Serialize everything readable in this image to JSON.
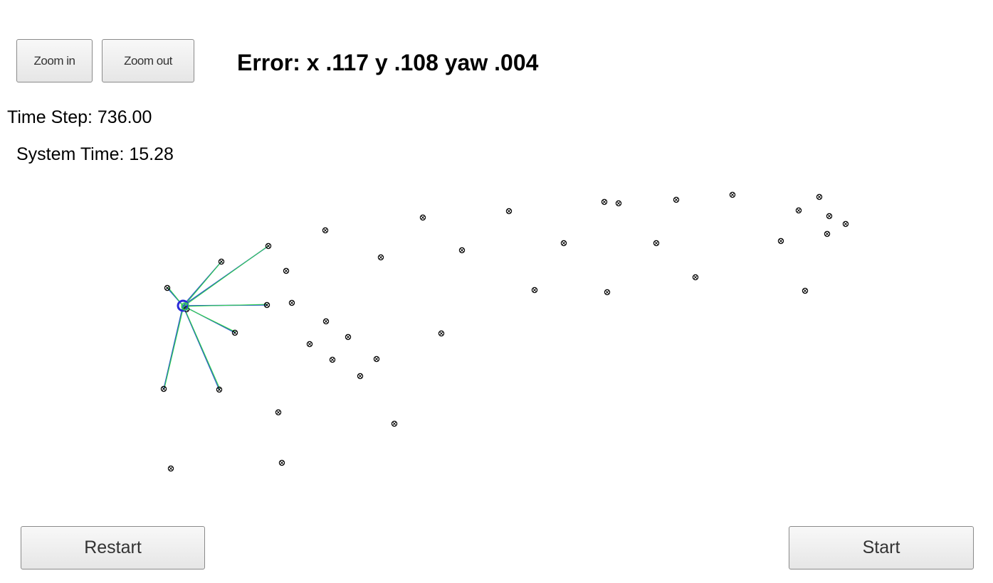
{
  "toolbar": {
    "zoom_in_label": "Zoom in",
    "zoom_out_label": "Zoom out"
  },
  "status": {
    "error_text": "Error: x .117 y .108 yaw .004",
    "time_step": "Time Step: 736.00",
    "system_time": "System Time: 15.28"
  },
  "controls": {
    "restart_label": "Restart",
    "start_label": "Start"
  },
  "colors": {
    "landmark": "#000000",
    "vehicle": "#2a2ad8",
    "observation_measured": "#2a5fc4",
    "observation_predicted": "#33d64a"
  }
}
